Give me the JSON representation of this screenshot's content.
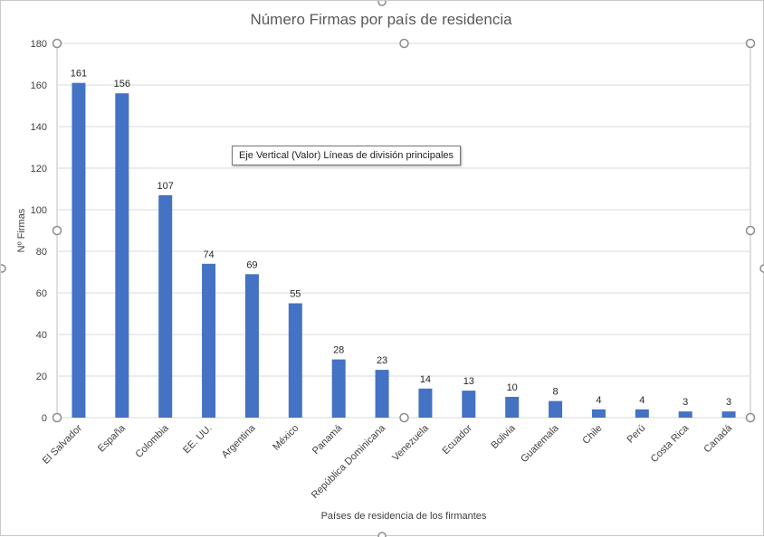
{
  "chart_data": {
    "type": "bar",
    "title": "Número Firmas por país de residencia",
    "xlabel": "Países de residencia de los firmantes",
    "ylabel": "Nº Firmas",
    "ylim": [
      0,
      180
    ],
    "yticks": [
      0,
      20,
      40,
      60,
      80,
      100,
      120,
      140,
      160,
      180
    ],
    "grid": true,
    "legend": "none",
    "data_labels": true,
    "bar_color": "#4472C4",
    "categories": [
      "El Salvador",
      "España",
      "Colombia",
      "EE. UU.",
      "Argentina",
      "México",
      "Panamá",
      "República Dominicana",
      "Venezuela",
      "Ecuador",
      "Bolivia",
      "Guatemala",
      "Chile",
      "Perú",
      "Costa Rica",
      "Canadá"
    ],
    "values": [
      161,
      156,
      107,
      74,
      69,
      55,
      28,
      23,
      14,
      13,
      10,
      8,
      4,
      4,
      3,
      3
    ]
  },
  "tooltip": {
    "text": "Eje Vertical (Valor)  Líneas de división principales"
  }
}
